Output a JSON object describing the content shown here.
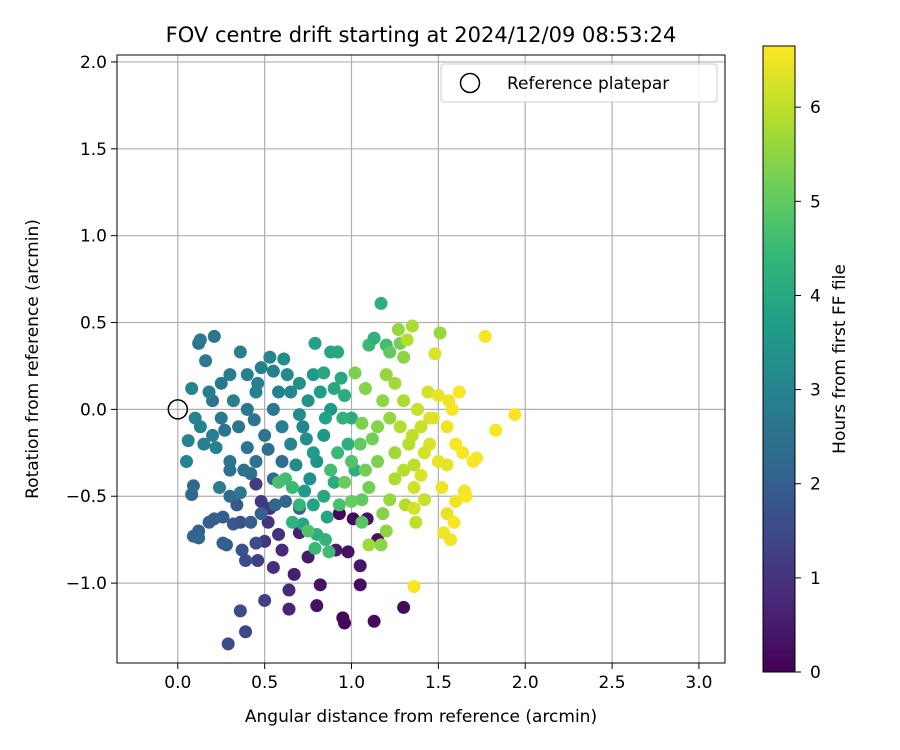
{
  "chart_data": {
    "type": "scatter",
    "title": "FOV centre drift starting at 2024/12/09 08:53:24",
    "xlabel": "Angular distance from reference (arcmin)",
    "ylabel": "Rotation from reference (arcmin)",
    "xlim": [
      -0.35,
      3.15
    ],
    "ylim": [
      -1.46,
      2.04
    ],
    "xticks": [
      0.0,
      0.5,
      1.0,
      1.5,
      2.0,
      2.5,
      3.0
    ],
    "yticks": [
      -1.0,
      -0.5,
      0.0,
      0.5,
      1.0,
      1.5,
      2.0
    ],
    "xtick_labels": [
      "0.0",
      "0.5",
      "1.0",
      "1.5",
      "2.0",
      "2.5",
      "3.0"
    ],
    "ytick_labels": [
      "−1.0",
      "−0.5",
      "0.0",
      "0.5",
      "1.0",
      "1.5",
      "2.0"
    ],
    "grid": true,
    "legend": {
      "placement": "top-right",
      "entries": [
        "Reference platepar"
      ]
    },
    "reference_point": {
      "x": 0.0,
      "y": 0.0
    },
    "colorbar": {
      "label": "Hours from first FF file",
      "range": [
        0,
        6.65
      ],
      "ticks": [
        0,
        1,
        2,
        3,
        4,
        5,
        6
      ],
      "tick_labels": [
        "0",
        "1",
        "2",
        "3",
        "4",
        "5",
        "6"
      ],
      "colormap": "viridis",
      "stops": [
        "#440154",
        "#482878",
        "#3e4989",
        "#31688e",
        "#26828e",
        "#1f9e89",
        "#35b779",
        "#6ece58",
        "#b5de2b",
        "#fde725"
      ]
    },
    "series": [
      {
        "points": [
          [
            0.93,
            -0.6,
            0.1
          ],
          [
            0.95,
            -1.2,
            0.1
          ],
          [
            0.96,
            -1.23,
            0.15
          ],
          [
            1.13,
            -1.22,
            0.2
          ],
          [
            1.05,
            -1.01,
            0.25
          ],
          [
            1.3,
            -1.14,
            0.2
          ],
          [
            0.8,
            -1.13,
            0.3
          ],
          [
            0.82,
            -1.01,
            0.35
          ],
          [
            0.98,
            -0.82,
            0.3
          ],
          [
            1.01,
            -0.63,
            0.2
          ],
          [
            1.09,
            -0.63,
            0.25
          ],
          [
            1.15,
            -0.75,
            0.3
          ],
          [
            1.05,
            -0.9,
            0.4
          ],
          [
            0.91,
            -0.81,
            0.5
          ],
          [
            0.75,
            -0.85,
            0.5
          ],
          [
            0.7,
            -0.71,
            0.6
          ],
          [
            0.67,
            -0.95,
            0.6
          ],
          [
            0.64,
            -1.15,
            0.7
          ],
          [
            0.64,
            -1.04,
            0.8
          ],
          [
            0.6,
            -0.81,
            0.8
          ],
          [
            0.58,
            -0.72,
            0.9
          ],
          [
            0.55,
            -0.91,
            0.9
          ],
          [
            0.52,
            -0.65,
            1.0
          ],
          [
            0.53,
            -0.57,
            1.0
          ],
          [
            0.5,
            -0.76,
            1.1
          ],
          [
            0.48,
            -0.53,
            1.1
          ],
          [
            0.45,
            -0.43,
            1.2
          ],
          [
            0.5,
            -1.1,
            1.3
          ],
          [
            0.39,
            -1.28,
            1.4
          ],
          [
            0.29,
            -1.35,
            1.6
          ],
          [
            0.36,
            -1.16,
            1.5
          ],
          [
            0.46,
            -0.87,
            1.3
          ],
          [
            0.39,
            -0.87,
            1.5
          ],
          [
            0.45,
            -0.77,
            1.6
          ],
          [
            0.37,
            -0.81,
            1.7
          ],
          [
            0.36,
            -0.65,
            1.7
          ],
          [
            0.34,
            -0.55,
            1.8
          ],
          [
            0.32,
            -0.66,
            1.8
          ],
          [
            0.26,
            -0.62,
            1.9
          ],
          [
            0.28,
            -0.78,
            1.9
          ],
          [
            0.26,
            -0.77,
            2.0
          ],
          [
            0.21,
            -0.63,
            2.0
          ],
          [
            0.18,
            -0.65,
            2.0
          ],
          [
            0.12,
            -0.7,
            2.1
          ],
          [
            0.09,
            -0.73,
            2.1
          ],
          [
            0.12,
            -0.74,
            2.2
          ],
          [
            0.08,
            -0.49,
            2.2
          ],
          [
            0.09,
            -0.44,
            2.3
          ],
          [
            0.3,
            -0.5,
            2.3
          ],
          [
            0.3,
            -0.35,
            2.4
          ],
          [
            0.42,
            -0.37,
            2.4
          ],
          [
            0.27,
            -0.12,
            2.5
          ],
          [
            0.2,
            0.05,
            2.5
          ],
          [
            0.12,
            0.38,
            2.6
          ],
          [
            0.21,
            0.42,
            2.6
          ],
          [
            0.13,
            0.4,
            2.7
          ],
          [
            0.16,
            0.28,
            2.7
          ],
          [
            0.36,
            0.33,
            2.8
          ],
          [
            0.3,
            0.2,
            2.8
          ],
          [
            0.45,
            0.1,
            2.9
          ],
          [
            0.48,
            0.24,
            2.9
          ],
          [
            0.05,
            -0.3,
            3.0
          ],
          [
            0.06,
            -0.18,
            3.0
          ],
          [
            0.1,
            -0.05,
            3.0
          ],
          [
            0.08,
            0.12,
            3.0
          ],
          [
            0.22,
            -0.22,
            2.9
          ],
          [
            0.24,
            -0.45,
            2.8
          ],
          [
            0.36,
            -0.48,
            2.7
          ],
          [
            0.4,
            -0.22,
            2.6
          ],
          [
            0.44,
            -0.06,
            2.5
          ],
          [
            0.52,
            -0.23,
            2.4
          ],
          [
            0.55,
            -0.4,
            2.3
          ],
          [
            0.6,
            -0.3,
            2.4
          ],
          [
            0.62,
            -0.53,
            2.2
          ],
          [
            0.7,
            -0.57,
            2.1
          ],
          [
            0.58,
            0.1,
            2.9
          ],
          [
            0.55,
            0.22,
            2.9
          ],
          [
            0.53,
            0.3,
            3.0
          ],
          [
            0.61,
            0.29,
            3.3
          ],
          [
            0.65,
            0.1,
            3.1
          ],
          [
            0.7,
            -0.03,
            3.2
          ],
          [
            0.74,
            -0.17,
            3.3
          ],
          [
            0.68,
            -0.32,
            3.2
          ],
          [
            0.76,
            -0.4,
            3.3
          ],
          [
            0.8,
            -0.3,
            3.4
          ],
          [
            0.84,
            -0.15,
            3.5
          ],
          [
            0.88,
            0.0,
            3.5
          ],
          [
            0.78,
            0.2,
            3.6
          ],
          [
            0.79,
            0.38,
            3.8
          ],
          [
            0.84,
            0.21,
            3.9
          ],
          [
            0.88,
            0.33,
            3.9
          ],
          [
            0.92,
            0.33,
            4.0
          ],
          [
            0.94,
            0.18,
            4.0
          ],
          [
            0.96,
            0.08,
            4.1
          ],
          [
            1.0,
            -0.05,
            4.1
          ],
          [
            0.98,
            -0.2,
            4.2
          ],
          [
            1.02,
            -0.35,
            4.2
          ],
          [
            0.9,
            -0.42,
            4.1
          ],
          [
            0.84,
            -0.5,
            4.0
          ],
          [
            0.78,
            -0.55,
            3.8
          ],
          [
            0.72,
            -0.66,
            3.9
          ],
          [
            0.8,
            -0.72,
            4.2
          ],
          [
            0.85,
            -0.75,
            4.3
          ],
          [
            0.79,
            -0.8,
            4.5
          ],
          [
            0.87,
            -0.82,
            4.6
          ],
          [
            0.75,
            -0.7,
            4.8
          ],
          [
            0.7,
            -0.55,
            4.4
          ],
          [
            0.66,
            -0.45,
            4.5
          ],
          [
            0.62,
            -0.4,
            4.6
          ],
          [
            0.58,
            -0.42,
            4.7
          ],
          [
            0.93,
            -0.55,
            4.7
          ],
          [
            1.06,
            -0.65,
            4.9
          ],
          [
            1.06,
            -0.52,
            5.0
          ],
          [
            1.0,
            -0.53,
            5.1
          ],
          [
            0.96,
            -0.42,
            5.1
          ],
          [
            1.1,
            -0.45,
            5.2
          ],
          [
            1.15,
            -0.3,
            5.3
          ],
          [
            1.12,
            -0.17,
            5.2
          ],
          [
            1.06,
            -0.08,
            5.3
          ],
          [
            1.08,
            0.12,
            5.4
          ],
          [
            1.02,
            0.21,
            5.3
          ],
          [
            1.1,
            0.37,
            4.5
          ],
          [
            1.13,
            0.41,
            4.3
          ],
          [
            1.2,
            0.37,
            4.6
          ],
          [
            1.17,
            0.61,
            4.2
          ],
          [
            1.22,
            0.33,
            5.0
          ],
          [
            1.28,
            0.38,
            5.2
          ],
          [
            1.3,
            0.3,
            5.5
          ],
          [
            1.27,
            0.46,
            5.6
          ],
          [
            1.35,
            0.48,
            5.8
          ],
          [
            1.32,
            0.4,
            5.9
          ],
          [
            1.2,
            0.2,
            5.6
          ],
          [
            1.25,
            0.15,
            5.7
          ],
          [
            1.3,
            0.05,
            5.8
          ],
          [
            1.28,
            -0.1,
            5.9
          ],
          [
            1.33,
            -0.2,
            5.9
          ],
          [
            1.36,
            -0.32,
            6.0
          ],
          [
            1.25,
            -0.4,
            5.8
          ],
          [
            1.22,
            -0.52,
            5.6
          ],
          [
            1.18,
            -0.6,
            5.4
          ],
          [
            1.2,
            -0.7,
            5.5
          ],
          [
            1.17,
            -0.78,
            5.5
          ],
          [
            1.1,
            -0.78,
            5.7
          ],
          [
            1.31,
            -0.55,
            5.9
          ],
          [
            1.36,
            -0.57,
            6.2
          ],
          [
            1.37,
            -0.65,
            6.0
          ],
          [
            1.42,
            -0.52,
            6.1
          ],
          [
            1.4,
            -0.1,
            6.1
          ],
          [
            1.44,
            0.1,
            6.2
          ],
          [
            1.48,
            0.32,
            6.3
          ],
          [
            1.51,
            0.44,
            5.6
          ],
          [
            1.47,
            -0.05,
            6.3
          ],
          [
            1.45,
            -0.2,
            6.3
          ],
          [
            1.5,
            -0.3,
            6.4
          ],
          [
            1.55,
            -0.32,
            6.4
          ],
          [
            1.52,
            -0.45,
            6.5
          ],
          [
            1.55,
            -0.6,
            6.4
          ],
          [
            1.53,
            -0.71,
            6.5
          ],
          [
            1.57,
            -0.75,
            6.5
          ],
          [
            1.59,
            -0.65,
            6.6
          ],
          [
            1.6,
            -0.53,
            6.5
          ],
          [
            1.65,
            -0.47,
            6.5
          ],
          [
            1.66,
            -0.5,
            6.6
          ],
          [
            1.64,
            -0.25,
            6.6
          ],
          [
            1.6,
            -0.2,
            6.6
          ],
          [
            1.58,
            0.0,
            6.6
          ],
          [
            1.62,
            0.1,
            6.6
          ],
          [
            1.72,
            -0.28,
            6.6
          ],
          [
            1.7,
            -0.3,
            6.6
          ],
          [
            1.77,
            0.42,
            6.6
          ],
          [
            1.83,
            -0.12,
            6.6
          ],
          [
            1.94,
            -0.03,
            6.6
          ],
          [
            1.36,
            -1.02,
            6.6
          ],
          [
            1.36,
            -0.45,
            6.2
          ],
          [
            1.4,
            -0.38,
            6.3
          ],
          [
            0.35,
            -0.1,
            2.6
          ],
          [
            0.4,
            0.0,
            2.7
          ],
          [
            0.32,
            0.05,
            2.8
          ],
          [
            0.25,
            -0.05,
            2.7
          ],
          [
            0.2,
            -0.15,
            2.8
          ],
          [
            0.15,
            -0.2,
            2.9
          ],
          [
            0.13,
            -0.1,
            2.9
          ],
          [
            0.18,
            0.1,
            2.8
          ],
          [
            0.25,
            0.15,
            2.7
          ],
          [
            0.3,
            -0.3,
            2.6
          ],
          [
            0.38,
            -0.35,
            2.5
          ],
          [
            0.45,
            -0.3,
            2.5
          ],
          [
            0.5,
            -0.15,
            2.6
          ],
          [
            0.55,
            0.0,
            2.7
          ],
          [
            0.6,
            -0.1,
            2.8
          ],
          [
            0.65,
            -0.2,
            3.0
          ],
          [
            0.72,
            -0.1,
            3.1
          ],
          [
            0.75,
            0.05,
            3.4
          ],
          [
            0.82,
            0.1,
            3.7
          ],
          [
            0.9,
            0.12,
            4.0
          ],
          [
            0.95,
            -0.05,
            4.3
          ],
          [
            0.92,
            -0.25,
            4.5
          ],
          [
            0.88,
            -0.35,
            4.6
          ],
          [
            1.0,
            -0.3,
            4.8
          ],
          [
            1.05,
            -0.2,
            5.0
          ],
          [
            1.08,
            -0.35,
            5.2
          ],
          [
            1.15,
            -0.1,
            5.4
          ],
          [
            1.18,
            0.05,
            5.5
          ],
          [
            1.22,
            -0.05,
            5.6
          ],
          [
            1.25,
            -0.25,
            5.7
          ],
          [
            1.3,
            -0.35,
            5.9
          ],
          [
            1.35,
            -0.15,
            6.0
          ],
          [
            1.38,
            0.0,
            6.1
          ],
          [
            1.42,
            -0.25,
            6.2
          ],
          [
            1.45,
            -0.05,
            6.3
          ],
          [
            1.5,
            0.08,
            6.4
          ],
          [
            1.55,
            -0.1,
            6.5
          ],
          [
            1.56,
            0.05,
            6.5
          ],
          [
            0.78,
            -0.25,
            3.6
          ],
          [
            0.85,
            -0.05,
            3.8
          ],
          [
            0.7,
            0.15,
            3.3
          ],
          [
            0.63,
            0.2,
            3.2
          ],
          [
            0.46,
            0.15,
            2.9
          ],
          [
            0.4,
            0.2,
            2.8
          ],
          [
            0.56,
            -0.55,
            2.2
          ],
          [
            0.48,
            -0.6,
            2.1
          ],
          [
            0.42,
            -0.65,
            2.0
          ],
          [
            0.66,
            -0.65,
            4.3
          ],
          [
            0.73,
            -0.47,
            3.6
          ],
          [
            0.86,
            -0.62,
            3.9
          ]
        ]
      }
    ]
  }
}
